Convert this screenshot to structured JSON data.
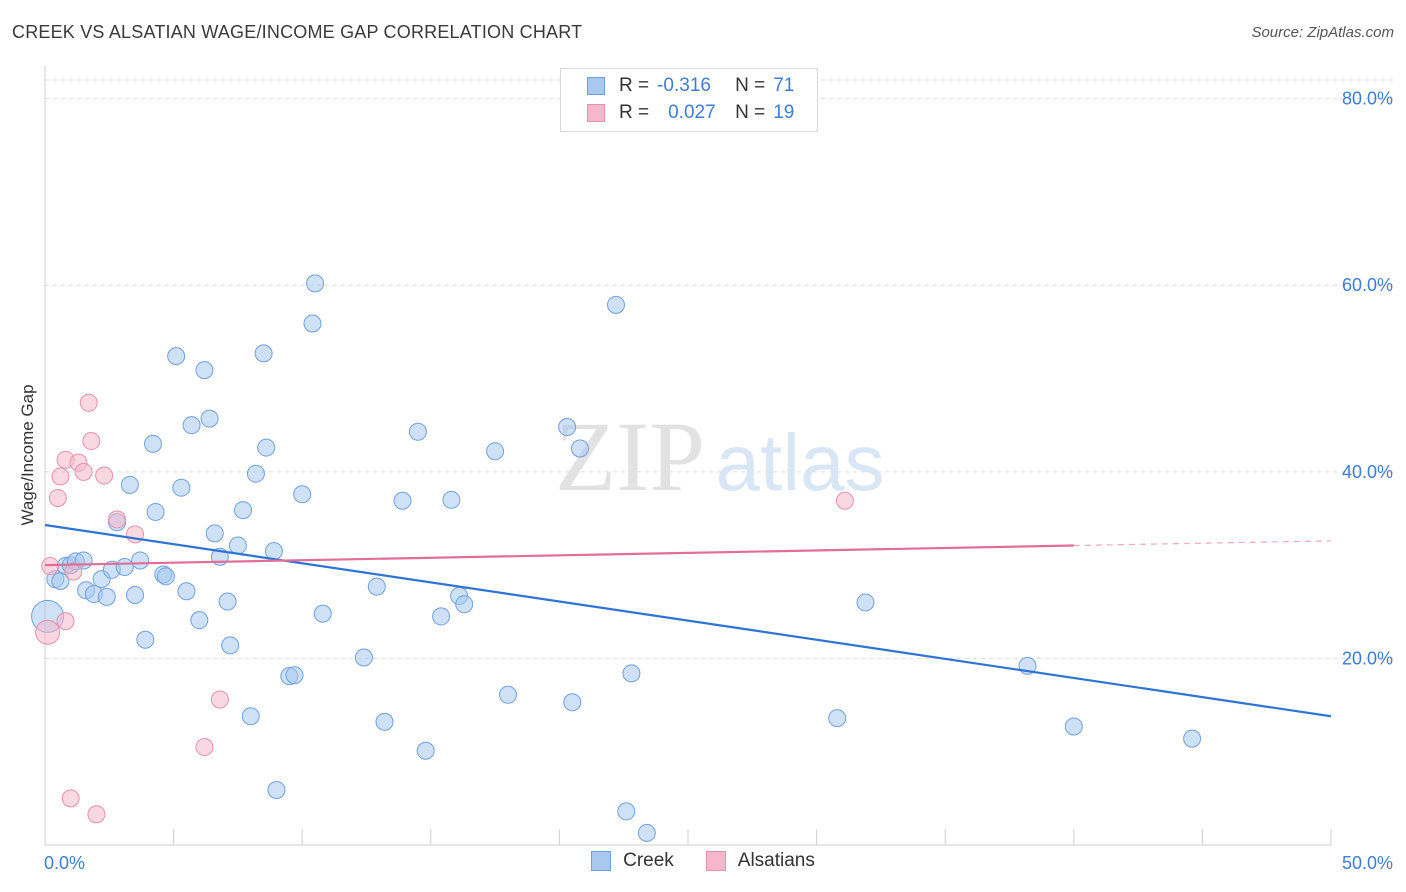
{
  "title": "CREEK VS ALSATIAN WAGE/INCOME GAP CORRELATION CHART",
  "source": "Source: ZipAtlas.com",
  "watermark": {
    "zip": "ZIP",
    "atlas": "atlas"
  },
  "legend": {
    "rows": [
      {
        "r_label": "R =",
        "r_value": "-0.316",
        "n_label": "N =",
        "n_value": "71",
        "color": "#a8c8f0"
      },
      {
        "r_label": "R =",
        "r_value": "0.027",
        "n_label": "N =",
        "n_value": "19",
        "color": "#f5b8cb"
      }
    ]
  },
  "bottom_legend": [
    {
      "label": "Creek",
      "color": "#a8c8f0"
    },
    {
      "label": "Alsatians",
      "color": "#f5b8cb"
    }
  ],
  "chart_data": {
    "type": "scatter",
    "title": "CREEK VS ALSATIAN WAGE/INCOME GAP CORRELATION CHART",
    "xlabel": "",
    "ylabel": "Wage/Income Gap",
    "xlim": [
      0,
      50
    ],
    "ylim": [
      0,
      82
    ],
    "x_tick_labels": [
      "0.0%",
      "50.0%"
    ],
    "y_ticks": [
      20,
      40,
      60,
      80
    ],
    "y_tick_labels": [
      "20.0%",
      "40.0%",
      "60.0%",
      "80.0%"
    ],
    "grid": true,
    "legend_position": "top-center",
    "series": [
      {
        "name": "Creek",
        "color": "#a8c8f0",
        "stroke": "#6fa1e0",
        "trend_color": "#2f74d4",
        "trend": {
          "x0": 0,
          "y0": 34.3,
          "x1": 50,
          "y1": 13.8
        },
        "points": [
          [
            0.1,
            24.5
          ],
          [
            0.4,
            28.5
          ],
          [
            0.6,
            28.3
          ],
          [
            0.8,
            29.9
          ],
          [
            1.0,
            30.0
          ],
          [
            1.2,
            30.4
          ],
          [
            1.5,
            30.5
          ],
          [
            1.6,
            27.3
          ],
          [
            1.9,
            26.9
          ],
          [
            2.2,
            28.5
          ],
          [
            2.4,
            26.6
          ],
          [
            2.6,
            29.5
          ],
          [
            2.8,
            34.6
          ],
          [
            3.1,
            29.8
          ],
          [
            3.3,
            38.6
          ],
          [
            3.5,
            26.8
          ],
          [
            3.7,
            30.5
          ],
          [
            3.9,
            22.0
          ],
          [
            4.2,
            43.0
          ],
          [
            4.3,
            35.7
          ],
          [
            4.6,
            29.0
          ],
          [
            4.7,
            28.8
          ],
          [
            5.1,
            52.4
          ],
          [
            5.3,
            38.3
          ],
          [
            5.5,
            27.2
          ],
          [
            5.7,
            45.0
          ],
          [
            6.0,
            24.1
          ],
          [
            6.2,
            50.9
          ],
          [
            6.4,
            45.7
          ],
          [
            6.6,
            33.4
          ],
          [
            6.8,
            30.9
          ],
          [
            7.1,
            26.1
          ],
          [
            7.2,
            21.4
          ],
          [
            7.5,
            32.1
          ],
          [
            7.7,
            35.9
          ],
          [
            8.0,
            13.8
          ],
          [
            8.2,
            39.8
          ],
          [
            8.5,
            52.7
          ],
          [
            8.6,
            42.6
          ],
          [
            8.9,
            31.5
          ],
          [
            9.0,
            5.9
          ],
          [
            9.5,
            18.1
          ],
          [
            9.7,
            18.2
          ],
          [
            10.0,
            37.6
          ],
          [
            10.4,
            55.9
          ],
          [
            10.5,
            60.2
          ],
          [
            10.8,
            24.8
          ],
          [
            12.4,
            20.1
          ],
          [
            12.9,
            27.7
          ],
          [
            13.2,
            13.2
          ],
          [
            13.9,
            36.9
          ],
          [
            14.5,
            44.3
          ],
          [
            14.8,
            10.1
          ],
          [
            15.4,
            24.5
          ],
          [
            15.8,
            37.0
          ],
          [
            16.1,
            26.7
          ],
          [
            16.3,
            25.8
          ],
          [
            17.5,
            42.2
          ],
          [
            18.0,
            16.1
          ],
          [
            20.3,
            44.8
          ],
          [
            20.5,
            15.3
          ],
          [
            20.8,
            42.5
          ],
          [
            22.2,
            57.9
          ],
          [
            22.6,
            3.6
          ],
          [
            22.8,
            18.4
          ],
          [
            23.4,
            1.3
          ],
          [
            30.8,
            13.6
          ],
          [
            31.9,
            26.0
          ],
          [
            38.2,
            19.2
          ],
          [
            40.0,
            12.7
          ],
          [
            44.6,
            11.4
          ]
        ]
      },
      {
        "name": "Alsatians",
        "color": "#f5b8cb",
        "stroke": "#e890ab",
        "trend_color": "#e26e98",
        "trend": {
          "x0": 0,
          "y0": 30.0,
          "x1": 40.0,
          "y1": 32.1
        },
        "trend_dashed": {
          "x0": 40.0,
          "y0": 32.1,
          "x1": 50,
          "y1": 32.6
        },
        "points": [
          [
            0.1,
            22.8
          ],
          [
            0.2,
            29.9
          ],
          [
            0.5,
            37.2
          ],
          [
            0.6,
            39.5
          ],
          [
            0.8,
            41.3
          ],
          [
            0.8,
            24.0
          ],
          [
            1.0,
            5.0
          ],
          [
            1.1,
            29.3
          ],
          [
            1.3,
            41.0
          ],
          [
            1.5,
            40.0
          ],
          [
            1.7,
            47.4
          ],
          [
            1.8,
            43.3
          ],
          [
            2.0,
            3.3
          ],
          [
            2.3,
            39.6
          ],
          [
            2.8,
            34.9
          ],
          [
            3.5,
            33.3
          ],
          [
            6.2,
            10.5
          ],
          [
            6.8,
            15.6
          ],
          [
            31.1,
            36.9
          ]
        ]
      }
    ]
  }
}
